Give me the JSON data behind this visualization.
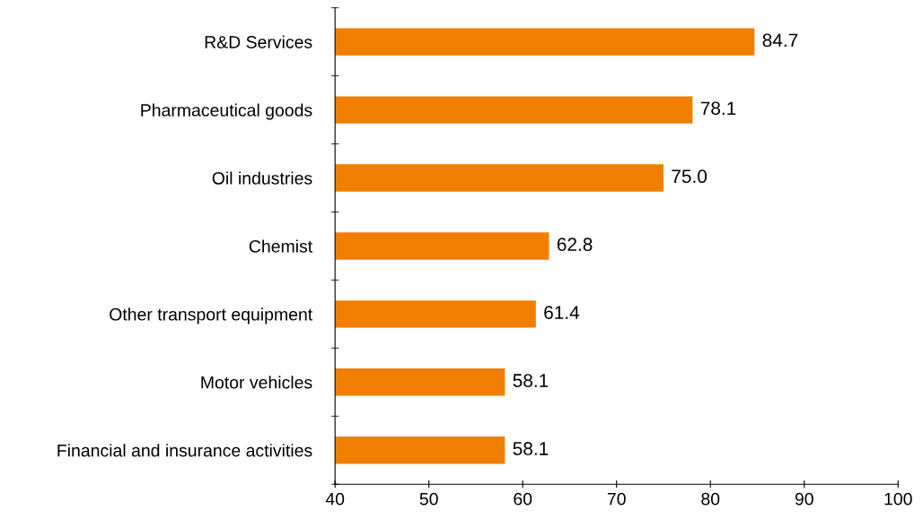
{
  "chart_data": {
    "type": "bar",
    "orientation": "horizontal",
    "categories": [
      "R&D Services",
      "Pharmaceutical goods",
      "Oil industries",
      "Chemist",
      "Other transport equipment",
      "Motor vehicles",
      "Financial and insurance activities"
    ],
    "values": [
      84.7,
      78.1,
      75.0,
      62.8,
      61.4,
      58.1,
      58.1
    ],
    "value_labels": [
      "84.7",
      "78.1",
      "75.0",
      "62.8",
      "61.4",
      "58.1",
      "58.1"
    ],
    "color": "#f07f00",
    "xlim": [
      40,
      100
    ],
    "xticks": [
      40,
      50,
      60,
      70,
      80,
      90,
      100
    ],
    "grid": false,
    "legend": false
  }
}
